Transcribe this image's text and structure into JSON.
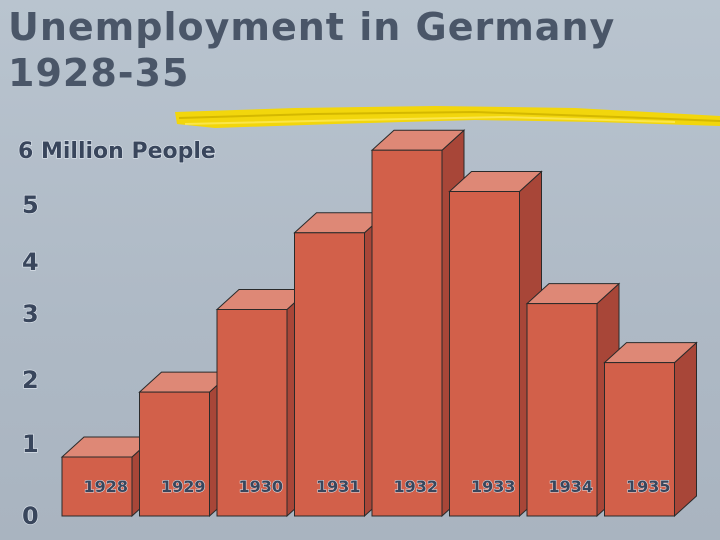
{
  "chart_data": {
    "type": "bar",
    "title": "Unemployment in Germany 1928-35",
    "title_lines": [
      "Unemployment in Germany",
      "1928-35"
    ],
    "ylabel": "6 Million People",
    "ylim": [
      0,
      6
    ],
    "yticks": [
      "0",
      "1",
      "2",
      "3",
      "4",
      "5"
    ],
    "categories": [
      "1928",
      "1929",
      "1930",
      "1931",
      "1932",
      "1933",
      "1934",
      "1935"
    ],
    "values": [
      1.0,
      2.1,
      3.5,
      4.8,
      6.2,
      5.5,
      3.6,
      2.6
    ],
    "bar_color": "#d2604a",
    "bar_top_color": "#de8876",
    "bar_side_color": "#a84638",
    "legend": "none",
    "grid": false
  }
}
